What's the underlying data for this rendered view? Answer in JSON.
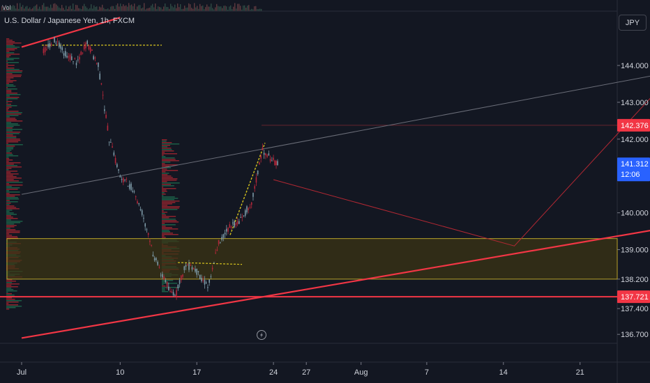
{
  "header": {
    "vol_label": "Vol",
    "symbol_title": "U.S. Dollar / Japanese Yen, 1h, FXCM",
    "currency": "JPY"
  },
  "chart_data": {
    "type": "candlestick",
    "symbol": "U.S. Dollar / Japanese Yen",
    "interval": "1h",
    "source": "FXCM",
    "ylim": [
      136.4,
      145.2
    ],
    "y_ticks": [
      {
        "value": 144.0,
        "label": "144.000"
      },
      {
        "value": 143.0,
        "label": "143.000"
      },
      {
        "value": 142.0,
        "label": "142.000"
      },
      {
        "value": 140.0,
        "label": "140.000"
      },
      {
        "value": 139.0,
        "label": "139.000"
      },
      {
        "value": 138.2,
        "label": "138.200"
      },
      {
        "value": 137.4,
        "label": "137.400"
      },
      {
        "value": 136.7,
        "label": "136.700"
      }
    ],
    "x_ticks": [
      "Jul",
      "10",
      "17",
      "24",
      "27",
      "Aug",
      "7",
      "14",
      "21"
    ],
    "price_labels": [
      {
        "value": 142.376,
        "label": "142.376",
        "color": "#f23645"
      },
      {
        "value": 141.312,
        "label": "141.312",
        "sublabel": "12:06",
        "color": "#2962ff"
      },
      {
        "value": 137.721,
        "label": "137.721",
        "color": "#f23645"
      }
    ],
    "zone": {
      "top": 139.3,
      "bottom": 138.2,
      "color": "#b8a22a"
    },
    "horizontal_lines": [
      {
        "value": 137.721,
        "color": "#f23645"
      },
      {
        "value": 142.376,
        "color": "#f23645"
      }
    ],
    "trend_lines": [
      {
        "color": "#f23645",
        "width": 2.2,
        "from": [
          "Jul",
          144.5
        ],
        "to": [
          "Jul 10",
          145.3
        ]
      },
      {
        "color": "#f23645",
        "width": 2.2,
        "from": [
          "Jul",
          136.6
        ],
        "to": [
          "Aug 29",
          139.6
        ]
      },
      {
        "color": "#6a6d78",
        "width": 1,
        "from": [
          "Jul",
          140.5
        ],
        "to": [
          "Aug 29",
          143.8
        ]
      }
    ],
    "projection": {
      "color": "#b22833",
      "points": [
        [
          "Jul 24",
          140.9
        ],
        [
          "Aug 15",
          139.1
        ],
        [
          "Aug 28",
          143.3
        ]
      ]
    },
    "ohlc_path": [
      [
        "Jul 3",
        144.4
      ],
      [
        "Jul 4",
        144.7
      ],
      [
        "Jul 5",
        144.3
      ],
      [
        "Jul 6",
        144.1
      ],
      [
        "Jul 7",
        144.6
      ],
      [
        "Jul 8",
        144.0
      ],
      [
        "Jul 9",
        142.0
      ],
      [
        "Jul 10",
        141.0
      ],
      [
        "Jul 11",
        140.7
      ],
      [
        "Jul 12",
        140.0
      ],
      [
        "Jul 13",
        138.9
      ],
      [
        "Jul 14",
        138.2
      ],
      [
        "Jul 15",
        137.7
      ],
      [
        "Jul 16",
        138.6
      ],
      [
        "Jul 17",
        138.4
      ],
      [
        "Jul 18",
        138.0
      ],
      [
        "Jul 19",
        139.2
      ],
      [
        "Jul 20",
        139.6
      ],
      [
        "Jul 21",
        139.8
      ],
      [
        "Jul 22",
        140.3
      ],
      [
        "Jul 23",
        141.7
      ],
      [
        "Jul 24",
        141.4
      ],
      [
        "Jul 24.5",
        141.3
      ]
    ]
  },
  "icons": {
    "lightning": "lightning-icon"
  }
}
